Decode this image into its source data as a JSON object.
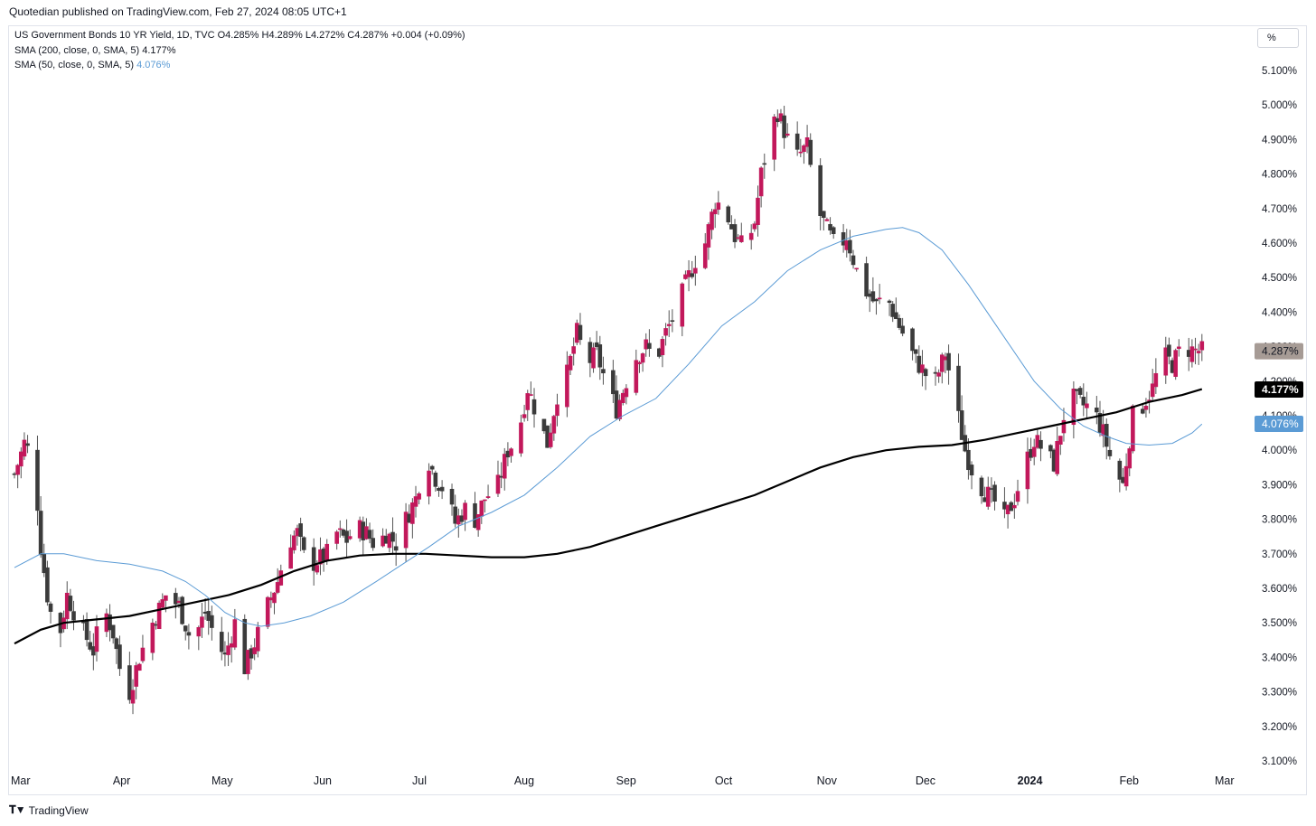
{
  "publisher": "Quotedian published on TradingView.com, Feb 27, 2024 08:05 UTC+1",
  "legend": {
    "main": "US Government Bonds 10 YR Yield, 1D, TVC  O4.285%  H4.289%  L4.272%  C4.287%  +0.004 (+0.09%)",
    "sma200_label": "SMA (200, close, 0, SMA, 5)",
    "sma200_value": "4.177%",
    "sma50_label": "SMA (50, close, 0, SMA, 5)",
    "sma50_value": "4.076%"
  },
  "unit_button": "%",
  "footer": {
    "logo_text": "TradingView",
    "logo_icon": "tradingview-logo-icon"
  },
  "colors": {
    "up_candle": "#3b3b3b",
    "down_candle": "#c2185b",
    "sma200": "#000000",
    "sma50": "#5b9bd5",
    "last_price_tag": "#a69b95"
  },
  "price_tags": [
    {
      "name": "last-price",
      "text": "4.287%",
      "value": 4.287,
      "bg": "#a69b95",
      "fg": "#131722"
    },
    {
      "name": "sma200",
      "text": "4.177%",
      "value": 4.177,
      "bg": "#000000",
      "fg": "#ffffff"
    },
    {
      "name": "sma50",
      "text": "4.076%",
      "value": 4.076,
      "bg": "#5b9bd5",
      "fg": "#ffffff"
    }
  ],
  "chart_data": {
    "type": "candlestick",
    "title": "US Government Bonds 10 YR Yield, 1D, TVC",
    "ylim": [
      3.05,
      5.15
    ],
    "y_ticks": [
      "5.100%",
      "5.000%",
      "4.900%",
      "4.800%",
      "4.700%",
      "4.600%",
      "4.500%",
      "4.400%",
      "4.300%",
      "4.200%",
      "4.100%",
      "4.000%",
      "3.900%",
      "3.800%",
      "3.700%",
      "3.600%",
      "3.500%",
      "3.400%",
      "3.300%",
      "3.200%",
      "3.100%"
    ],
    "y_tick_values": [
      5.1,
      5.0,
      4.9,
      4.8,
      4.7,
      4.6,
      4.5,
      4.4,
      4.3,
      4.2,
      4.1,
      4.0,
      3.9,
      3.8,
      3.7,
      3.6,
      3.5,
      3.4,
      3.3,
      3.2,
      3.1
    ],
    "x_ticks": [
      {
        "label": "Mar",
        "day": 0
      },
      {
        "label": "Apr",
        "day": 31
      },
      {
        "label": "May",
        "day": 61
      },
      {
        "label": "Jun",
        "day": 92
      },
      {
        "label": "Jul",
        "day": 122
      },
      {
        "label": "Aug",
        "day": 153
      },
      {
        "label": "Sep",
        "day": 184
      },
      {
        "label": "Oct",
        "day": 214
      },
      {
        "label": "Nov",
        "day": 245
      },
      {
        "label": "Dec",
        "day": 275
      },
      {
        "label": "2024",
        "day": 306,
        "bold": true
      },
      {
        "label": "Feb",
        "day": 337
      },
      {
        "label": "Mar",
        "day": 366
      }
    ],
    "x_range_days": [
      0,
      366
    ],
    "close_path": [
      [
        0,
        3.93
      ],
      [
        3,
        4.02
      ],
      [
        6,
        3.97
      ],
      [
        8,
        3.72
      ],
      [
        10,
        3.58
      ],
      [
        13,
        3.43
      ],
      [
        16,
        3.58
      ],
      [
        20,
        3.49
      ],
      [
        24,
        3.42
      ],
      [
        27,
        3.55
      ],
      [
        30,
        3.47
      ],
      [
        33,
        3.32
      ],
      [
        35,
        3.3
      ],
      [
        38,
        3.4
      ],
      [
        42,
        3.5
      ],
      [
        46,
        3.58
      ],
      [
        50,
        3.55
      ],
      [
        54,
        3.44
      ],
      [
        58,
        3.53
      ],
      [
        61,
        3.46
      ],
      [
        64,
        3.4
      ],
      [
        67,
        3.5
      ],
      [
        70,
        3.37
      ],
      [
        73,
        3.44
      ],
      [
        77,
        3.55
      ],
      [
        80,
        3.62
      ],
      [
        83,
        3.73
      ],
      [
        86,
        3.76
      ],
      [
        89,
        3.66
      ],
      [
        92,
        3.68
      ],
      [
        95,
        3.7
      ],
      [
        98,
        3.76
      ],
      [
        101,
        3.74
      ],
      [
        104,
        3.78
      ],
      [
        107,
        3.76
      ],
      [
        110,
        3.72
      ],
      [
        113,
        3.76
      ],
      [
        116,
        3.73
      ],
      [
        119,
        3.8
      ],
      [
        122,
        3.86
      ],
      [
        125,
        3.99
      ],
      [
        128,
        3.92
      ],
      [
        131,
        3.88
      ],
      [
        134,
        3.79
      ],
      [
        137,
        3.83
      ],
      [
        140,
        3.8
      ],
      [
        143,
        3.86
      ],
      [
        147,
        3.9
      ],
      [
        150,
        4.0
      ],
      [
        153,
        4.04
      ],
      [
        156,
        4.18
      ],
      [
        159,
        4.1
      ],
      [
        162,
        4.02
      ],
      [
        165,
        4.16
      ],
      [
        168,
        4.22
      ],
      [
        171,
        4.34
      ],
      [
        174,
        4.25
      ],
      [
        177,
        4.28
      ],
      [
        180,
        4.19
      ],
      [
        183,
        4.12
      ],
      [
        186,
        4.2
      ],
      [
        189,
        4.27
      ],
      [
        192,
        4.3
      ],
      [
        195,
        4.26
      ],
      [
        198,
        4.34
      ],
      [
        201,
        4.4
      ],
      [
        204,
        4.48
      ],
      [
        207,
        4.55
      ],
      [
        210,
        4.6
      ],
      [
        213,
        4.72
      ],
      [
        216,
        4.7
      ],
      [
        219,
        4.62
      ],
      [
        222,
        4.58
      ],
      [
        225,
        4.66
      ],
      [
        227,
        4.8
      ],
      [
        230,
        4.93
      ],
      [
        232,
        4.98
      ],
      [
        235,
        4.9
      ],
      [
        238,
        4.85
      ],
      [
        241,
        4.88
      ],
      [
        244,
        4.7
      ],
      [
        247,
        4.64
      ],
      [
        250,
        4.58
      ],
      [
        253,
        4.62
      ],
      [
        256,
        4.52
      ],
      [
        259,
        4.46
      ],
      [
        262,
        4.42
      ],
      [
        265,
        4.45
      ],
      [
        268,
        4.38
      ],
      [
        271,
        4.32
      ],
      [
        274,
        4.26
      ],
      [
        277,
        4.22
      ],
      [
        280,
        4.2
      ],
      [
        283,
        4.28
      ],
      [
        286,
        4.14
      ],
      [
        289,
        4.0
      ],
      [
        292,
        3.92
      ],
      [
        295,
        3.88
      ],
      [
        298,
        3.85
      ],
      [
        301,
        3.8
      ],
      [
        304,
        3.86
      ],
      [
        307,
        3.95
      ],
      [
        310,
        4.03
      ],
      [
        313,
        4.0
      ],
      [
        316,
        3.96
      ],
      [
        319,
        4.1
      ],
      [
        322,
        4.15
      ],
      [
        325,
        4.13
      ],
      [
        328,
        4.12
      ],
      [
        331,
        4.05
      ],
      [
        334,
        3.95
      ],
      [
        337,
        3.9
      ],
      [
        340,
        4.1
      ],
      [
        343,
        4.13
      ],
      [
        346,
        4.18
      ],
      [
        349,
        4.28
      ],
      [
        352,
        4.25
      ],
      [
        355,
        4.3
      ],
      [
        358,
        4.29
      ],
      [
        361,
        4.287
      ]
    ],
    "sma200": [
      [
        0,
        3.44
      ],
      [
        8,
        3.48
      ],
      [
        15,
        3.5
      ],
      [
        25,
        3.51
      ],
      [
        35,
        3.52
      ],
      [
        45,
        3.54
      ],
      [
        55,
        3.56
      ],
      [
        65,
        3.58
      ],
      [
        75,
        3.61
      ],
      [
        85,
        3.65
      ],
      [
        95,
        3.68
      ],
      [
        105,
        3.695
      ],
      [
        115,
        3.7
      ],
      [
        125,
        3.7
      ],
      [
        135,
        3.695
      ],
      [
        145,
        3.69
      ],
      [
        155,
        3.69
      ],
      [
        165,
        3.7
      ],
      [
        175,
        3.72
      ],
      [
        185,
        3.75
      ],
      [
        195,
        3.78
      ],
      [
        205,
        3.81
      ],
      [
        215,
        3.84
      ],
      [
        225,
        3.87
      ],
      [
        235,
        3.91
      ],
      [
        245,
        3.95
      ],
      [
        255,
        3.98
      ],
      [
        265,
        4.0
      ],
      [
        275,
        4.01
      ],
      [
        285,
        4.015
      ],
      [
        295,
        4.03
      ],
      [
        305,
        4.05
      ],
      [
        315,
        4.07
      ],
      [
        325,
        4.09
      ],
      [
        335,
        4.11
      ],
      [
        345,
        4.14
      ],
      [
        355,
        4.16
      ],
      [
        361,
        4.177
      ]
    ],
    "sma50": [
      [
        0,
        3.66
      ],
      [
        8,
        3.7
      ],
      [
        15,
        3.7
      ],
      [
        25,
        3.68
      ],
      [
        35,
        3.67
      ],
      [
        45,
        3.65
      ],
      [
        52,
        3.62
      ],
      [
        58,
        3.58
      ],
      [
        64,
        3.53
      ],
      [
        70,
        3.5
      ],
      [
        75,
        3.49
      ],
      [
        82,
        3.5
      ],
      [
        90,
        3.52
      ],
      [
        100,
        3.56
      ],
      [
        110,
        3.62
      ],
      [
        118,
        3.67
      ],
      [
        126,
        3.72
      ],
      [
        135,
        3.78
      ],
      [
        145,
        3.82
      ],
      [
        155,
        3.87
      ],
      [
        165,
        3.95
      ],
      [
        175,
        4.04
      ],
      [
        185,
        4.1
      ],
      [
        195,
        4.15
      ],
      [
        205,
        4.25
      ],
      [
        215,
        4.36
      ],
      [
        225,
        4.43
      ],
      [
        235,
        4.52
      ],
      [
        245,
        4.58
      ],
      [
        255,
        4.62
      ],
      [
        265,
        4.64
      ],
      [
        270,
        4.645
      ],
      [
        275,
        4.63
      ],
      [
        282,
        4.58
      ],
      [
        290,
        4.48
      ],
      [
        300,
        4.34
      ],
      [
        310,
        4.2
      ],
      [
        318,
        4.12
      ],
      [
        325,
        4.07
      ],
      [
        332,
        4.04
      ],
      [
        338,
        4.02
      ],
      [
        345,
        4.015
      ],
      [
        352,
        4.02
      ],
      [
        358,
        4.05
      ],
      [
        361,
        4.076
      ]
    ]
  }
}
